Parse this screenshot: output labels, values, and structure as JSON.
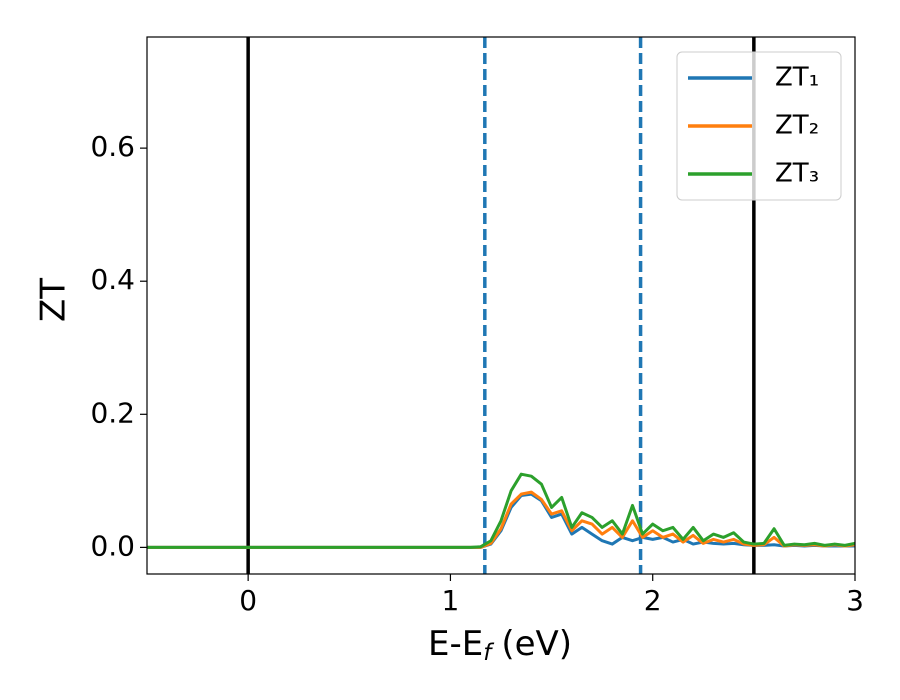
{
  "chart_data": {
    "type": "line",
    "xlabel": [
      "E-E",
      "f",
      "(eV)"
    ],
    "ylabel": "ZT",
    "xlim": [
      -0.5,
      3
    ],
    "ylim": [
      -0.04,
      0.767
    ],
    "xticks": [
      0,
      1,
      2,
      3
    ],
    "yticks": [
      {
        "value": 0,
        "label": "0.0"
      },
      0.2,
      0.4,
      0.6
    ],
    "grid": false,
    "legend": "upper right",
    "vlines": [
      {
        "x": 0,
        "color": "#000000",
        "style": "solid"
      },
      {
        "x": 2.5,
        "color": "#000000",
        "style": "solid"
      },
      {
        "x": 1.17,
        "color": "#1f77b4",
        "style": "dashed"
      },
      {
        "x": 1.94,
        "color": "#1f77b4",
        "style": "dashed"
      }
    ],
    "x": [
      -0.5,
      0,
      0.5,
      1.0,
      1.1,
      1.15,
      1.2,
      1.25,
      1.3,
      1.35,
      1.4,
      1.45,
      1.5,
      1.55,
      1.6,
      1.65,
      1.7,
      1.75,
      1.8,
      1.85,
      1.9,
      1.95,
      2.0,
      2.05,
      2.1,
      2.15,
      2.2,
      2.25,
      2.3,
      2.35,
      2.4,
      2.45,
      2.5,
      2.55,
      2.6,
      2.65,
      2.7,
      2.75,
      2.8,
      2.85,
      2.9,
      2.95,
      3.0
    ],
    "series": [
      {
        "name": "ZT₁",
        "color": "#1f77b4",
        "values": [
          0,
          0,
          0,
          0,
          0,
          0,
          0.005,
          0.025,
          0.06,
          0.078,
          0.08,
          0.07,
          0.045,
          0.05,
          0.02,
          0.03,
          0.02,
          0.01,
          0.005,
          0.015,
          0.01,
          0.015,
          0.012,
          0.015,
          0.008,
          0.012,
          0.005,
          0.008,
          0.006,
          0.005,
          0.006,
          0.004,
          0.003,
          0.003,
          0.004,
          0.002,
          0.003,
          0.002,
          0.003,
          0.002,
          0.002,
          0.002,
          0.002
        ]
      },
      {
        "name": "ZT₂",
        "color": "#ff7f0e",
        "values": [
          0,
          0,
          0,
          0,
          0,
          0,
          0.006,
          0.028,
          0.065,
          0.08,
          0.083,
          0.072,
          0.05,
          0.055,
          0.025,
          0.04,
          0.035,
          0.02,
          0.03,
          0.015,
          0.04,
          0.015,
          0.025,
          0.015,
          0.02,
          0.008,
          0.018,
          0.006,
          0.012,
          0.008,
          0.012,
          0.005,
          0.003,
          0.004,
          0.015,
          0.002,
          0.004,
          0.003,
          0.004,
          0.002,
          0.004,
          0.002,
          0.004
        ]
      },
      {
        "name": "ZT₃",
        "color": "#2ca02c",
        "values": [
          0,
          0,
          0,
          0,
          0,
          0.001,
          0.01,
          0.04,
          0.085,
          0.11,
          0.107,
          0.095,
          0.06,
          0.075,
          0.03,
          0.052,
          0.045,
          0.03,
          0.04,
          0.02,
          0.063,
          0.02,
          0.035,
          0.025,
          0.03,
          0.012,
          0.03,
          0.01,
          0.02,
          0.015,
          0.022,
          0.008,
          0.005,
          0.006,
          0.028,
          0.003,
          0.005,
          0.004,
          0.006,
          0.003,
          0.005,
          0.003,
          0.006
        ]
      }
    ]
  }
}
